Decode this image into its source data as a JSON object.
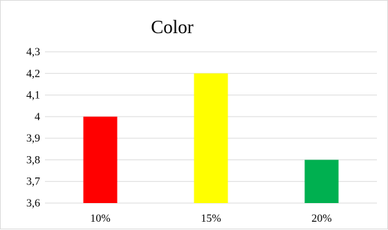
{
  "chart_data": {
    "type": "bar",
    "title": "Color",
    "categories": [
      "10%",
      "15%",
      "20%"
    ],
    "values": [
      4.0,
      4.2,
      3.8
    ],
    "bar_colors": [
      "#ff0000",
      "#ffff00",
      "#00b050"
    ],
    "ylim": [
      3.6,
      4.3
    ],
    "yticks": [
      3.6,
      3.7,
      3.8,
      3.9,
      4.0,
      4.1,
      4.2,
      4.3
    ],
    "ytick_labels": [
      "3,6",
      "3,7",
      "3,8",
      "3,9",
      "4",
      "4,1",
      "4,2",
      "4,3"
    ],
    "grid": true,
    "gridline_color": "#d9d9d9",
    "legend": "none"
  }
}
